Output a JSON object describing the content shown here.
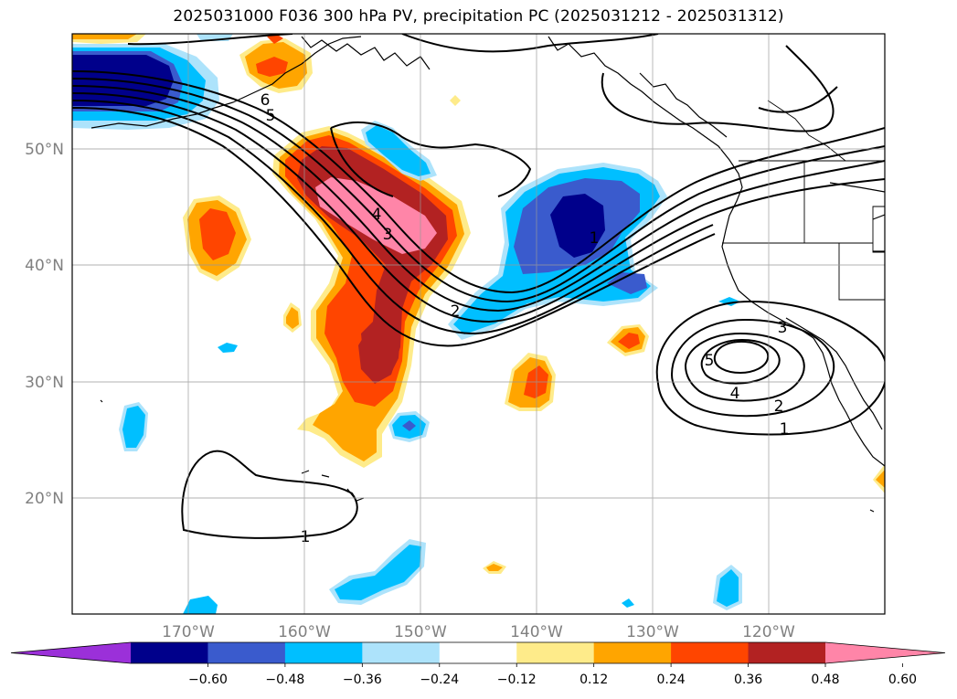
{
  "title": "2025031000 F036 300 hPa PV, precipitation PC (2025031212 - 2025031312)",
  "map": {
    "lat_labels": [
      "50°N",
      "40°N",
      "30°N",
      "20°N"
    ],
    "lon_labels": [
      "170°W",
      "160°W",
      "150°W",
      "140°W",
      "130°W",
      "120°W"
    ],
    "gridlines": true
  },
  "contours": {
    "variable": "300 hPa PV",
    "labels": [
      "6",
      "5",
      "4",
      "3",
      "2",
      "1",
      "3",
      "5",
      "4",
      "2",
      "1",
      "1"
    ]
  },
  "fill": {
    "variable": "precipitation PC",
    "colors": {
      "neg_ext": "#9b30d9",
      "neg_060": "#00008b",
      "neg_048": "#3a5bcd",
      "neg_036": "#00bfff",
      "neg_024": "#ade3fb",
      "zero": "#ffffff",
      "pos_012": "#feeb8a",
      "pos_024": "#ffa500",
      "pos_036": "#ff4500",
      "pos_048": "#b22222",
      "pos_ext": "#ff85a8"
    }
  },
  "colorbar": {
    "ticks": [
      "−0.60",
      "−0.48",
      "−0.36",
      "−0.24",
      "−0.12",
      "0.12",
      "0.24",
      "0.36",
      "0.48",
      "0.60"
    ],
    "colors": [
      "#9b30d9",
      "#00008b",
      "#3a5bcd",
      "#00bfff",
      "#ade3fb",
      "#ffffff",
      "#feeb8a",
      "#ffa500",
      "#ff4500",
      "#b22222",
      "#ff85a8"
    ]
  }
}
